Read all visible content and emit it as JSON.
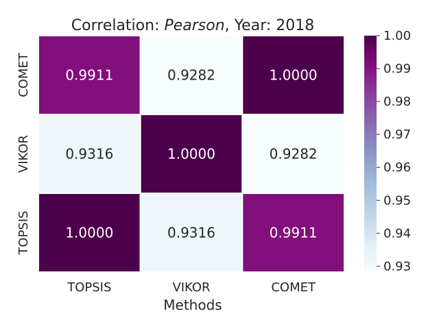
{
  "chart_data": {
    "type": "heatmap",
    "title_prefix": "Correlation: ",
    "title_method": "Pearson",
    "title_suffix": ", Year: 2018",
    "xlabel": "Methods",
    "ylabel": "",
    "x_categories": [
      "TOPSIS",
      "VIKOR",
      "COMET"
    ],
    "y_categories_top_to_bottom": [
      "COMET",
      "VIKOR",
      "TOPSIS"
    ],
    "matrix_top_to_bottom": [
      [
        0.9911,
        0.9282,
        1.0
      ],
      [
        0.9316,
        1.0,
        0.9282
      ],
      [
        1.0,
        0.9316,
        0.9911
      ]
    ],
    "value_labels_top_to_bottom": [
      [
        "0.9911",
        "0.9282",
        "1.0000"
      ],
      [
        "0.9316",
        "1.0000",
        "0.9282"
      ],
      [
        "1.0000",
        "0.9316",
        "0.9911"
      ]
    ],
    "colorbar": {
      "min": 0.9282,
      "max": 1.0,
      "ticks": [
        0.93,
        0.94,
        0.95,
        0.96,
        0.97,
        0.98,
        0.99,
        1.0
      ],
      "tick_labels": [
        "0.93",
        "0.94",
        "0.95",
        "0.96",
        "0.97",
        "0.98",
        "0.99",
        "1.00"
      ],
      "colormap": "BuPu",
      "stops": [
        "#f7fcfd",
        "#e0ecf4",
        "#bfd3e6",
        "#9ebcda",
        "#8c96c6",
        "#8c6bb1",
        "#88419d",
        "#810f7c",
        "#4d004b"
      ]
    },
    "legend": "right",
    "grid": false
  }
}
